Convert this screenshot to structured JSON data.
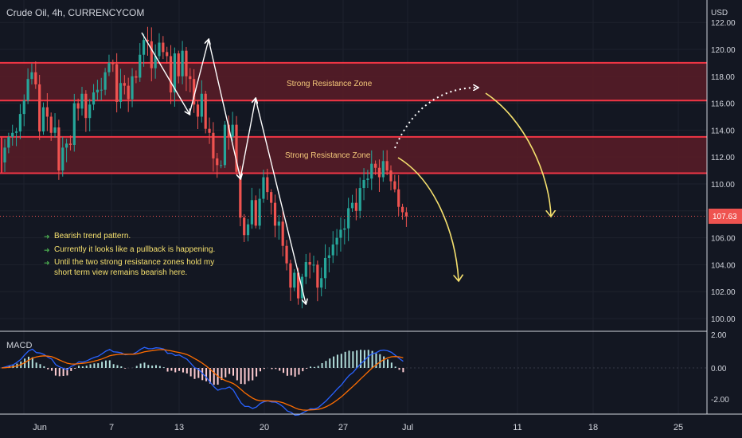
{
  "header": {
    "symbol": "Crude Oil, 4h, CURRENCYCOM"
  },
  "price_scale": {
    "currency": "USD",
    "ticks": [
      "122.00",
      "120.00",
      "118.00",
      "116.00",
      "114.00",
      "112.00",
      "110.00",
      "108.00",
      "106.00",
      "104.00",
      "102.00",
      "100.00"
    ],
    "current_price": "107.63"
  },
  "macd_scale": {
    "ticks": [
      "2.00",
      "0.00",
      "-2.00"
    ]
  },
  "time_axis": {
    "labels": [
      "Jun",
      "7",
      "13",
      "20",
      "27",
      "Jul",
      "11",
      "18",
      "25"
    ]
  },
  "indicator": {
    "name": "MACD"
  },
  "zones": [
    {
      "label": "Strong Resistance Zone",
      "low": 116.2,
      "high": 119.0
    },
    {
      "label": "Strong Resistance Zone",
      "low": 110.8,
      "high": 113.5
    }
  ],
  "notes": [
    "Bearish trend pattern.",
    "Currently it looks like a pullback is happening.",
    "Until the two strong resistance zones hold my\nshort term view remains bearish here."
  ],
  "colors": {
    "background": "#131722",
    "up": "#26a69a",
    "down": "#ef5350",
    "zone_fill": "#5a1c27",
    "zone_border": "#f23645",
    "annotation": "#f5e06e",
    "macd_line": "#2962ff",
    "signal_line": "#ff6d00"
  },
  "chart_data": {
    "type": "candlestick",
    "y_range": [
      99,
      123
    ],
    "macd_range": [
      -3,
      2.5
    ],
    "path_close": [
      112.7,
      113.5,
      113.8,
      113.9,
      115.2,
      116.2,
      117.8,
      118.3,
      117.4,
      113.9,
      115.7,
      115.0,
      113.8,
      114.2,
      111.0,
      112.7,
      113.0,
      112.9,
      116.0,
      115.6,
      116.7,
      114.9,
      115.9,
      116.8,
      117.0,
      117.0,
      118.3,
      119.0,
      118.9,
      116.1,
      117.5,
      117.3,
      116.3,
      118.0,
      117.9,
      119.6,
      120.7,
      120.6,
      118.6,
      119.5,
      120.5,
      119.8,
      119.5,
      116.8,
      119.7,
      118.0,
      119.9,
      118.0,
      117.8,
      115.9,
      115.0,
      116.7,
      114.1,
      113.8,
      111.9,
      111.4,
      111.4,
      114.4,
      113.5,
      114.4,
      110.9,
      107.5,
      106.2,
      107.0,
      108.8,
      106.9,
      108.9,
      110.5,
      109.4,
      108.6,
      106.9,
      107.2,
      105.4,
      104.1,
      102.3,
      103.4,
      101.5,
      103.1,
      104.2,
      104.0,
      104.0,
      102.3,
      103.0,
      104.5,
      104.7,
      105.5,
      106.0,
      106.6,
      106.7,
      108.2,
      108.6,
      108.0,
      109.7,
      110.3,
      110.4,
      111.5,
      111.2,
      110.5,
      111.7,
      111.0,
      110.2,
      109.6,
      108.3,
      107.9,
      107.6
    ],
    "zigzag_high": [
      122,
      116.5
    ],
    "projection_points": [
      118,
      117.5
    ]
  }
}
